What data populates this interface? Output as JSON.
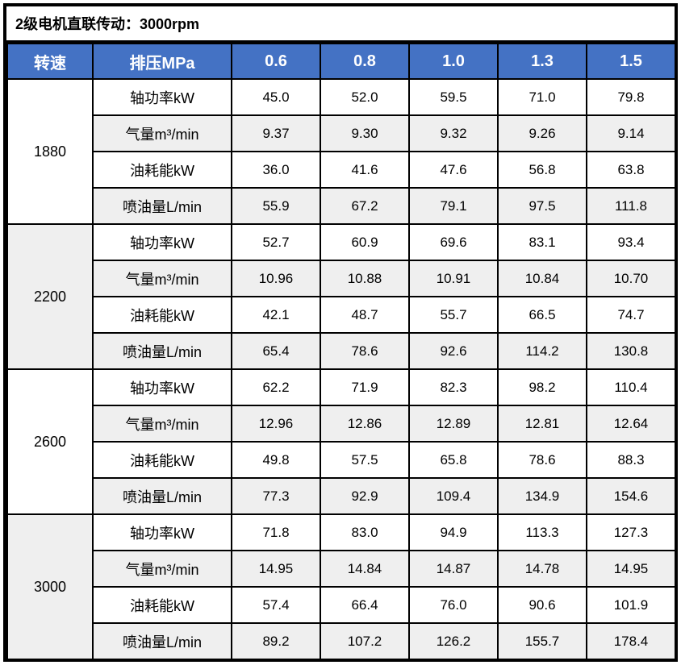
{
  "title": "2级电机直联传动：3000rpm",
  "colors": {
    "header_bg": "#4472C4",
    "header_text": "#FFFFFF",
    "band_bg": "#EFEFEF",
    "border": "#000000"
  },
  "table": {
    "speed_header": "转速",
    "pressure_header": "排压MPa",
    "pressure_columns": [
      "0.6",
      "0.8",
      "1.0",
      "1.3",
      "1.5"
    ],
    "metric_labels": [
      "轴功率kW",
      "气量m³/min",
      "油耗能kW",
      "喷油量L/min"
    ],
    "groups": [
      {
        "speed": "1880",
        "rows": [
          [
            "45.0",
            "52.0",
            "59.5",
            "71.0",
            "79.8"
          ],
          [
            "9.37",
            "9.30",
            "9.32",
            "9.26",
            "9.14"
          ],
          [
            "36.0",
            "41.6",
            "47.6",
            "56.8",
            "63.8"
          ],
          [
            "55.9",
            "67.2",
            "79.1",
            "97.5",
            "111.8"
          ]
        ]
      },
      {
        "speed": "2200",
        "rows": [
          [
            "52.7",
            "60.9",
            "69.6",
            "83.1",
            "93.4"
          ],
          [
            "10.96",
            "10.88",
            "10.91",
            "10.84",
            "10.70"
          ],
          [
            "42.1",
            "48.7",
            "55.7",
            "66.5",
            "74.7"
          ],
          [
            "65.4",
            "78.6",
            "92.6",
            "114.2",
            "130.8"
          ]
        ]
      },
      {
        "speed": "2600",
        "rows": [
          [
            "62.2",
            "71.9",
            "82.3",
            "98.2",
            "110.4"
          ],
          [
            "12.96",
            "12.86",
            "12.89",
            "12.81",
            "12.64"
          ],
          [
            "49.8",
            "57.5",
            "65.8",
            "78.6",
            "88.3"
          ],
          [
            "77.3",
            "92.9",
            "109.4",
            "134.9",
            "154.6"
          ]
        ]
      },
      {
        "speed": "3000",
        "rows": [
          [
            "71.8",
            "83.0",
            "94.9",
            "113.3",
            "127.3"
          ],
          [
            "14.95",
            "14.84",
            "14.87",
            "14.78",
            "14.95"
          ],
          [
            "57.4",
            "66.4",
            "76.0",
            "90.6",
            "101.9"
          ],
          [
            "89.2",
            "107.2",
            "126.2",
            "155.7",
            "178.4"
          ]
        ]
      }
    ]
  }
}
